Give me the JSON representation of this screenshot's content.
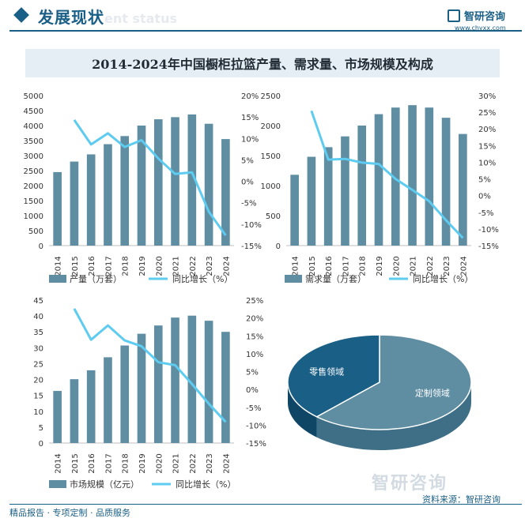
{
  "header": {
    "title": "发展现状",
    "subtitle": "ent status",
    "brand_name": "智研咨询",
    "brand_url": "www.chyxx.com"
  },
  "figure_title": "2014-2024年中国橱柜拉篮产量、需求量、市场规模及构成",
  "footer": {
    "tagline": "精品报告 · 专项定制 · 品质服务",
    "source": "资料来源：智研咨询",
    "watermark": "智研咨询"
  },
  "colors": {
    "bar": "#5f8ea3",
    "line": "#5ecbf0",
    "pie_dark": "#1a5f86",
    "pie_light": "#5f8ea3"
  },
  "chart_data": [
    {
      "type": "bar",
      "categories": [
        "2014",
        "2015",
        "2016",
        "2017",
        "2018",
        "2019",
        "2020",
        "2021",
        "2022",
        "2023",
        "2024"
      ],
      "series": [
        {
          "name": "产量（万套）",
          "values": [
            2450,
            2800,
            3040,
            3380,
            3650,
            4000,
            4210,
            4280,
            4370,
            4060,
            3550
          ]
        },
        {
          "name": "同比增长（%）",
          "type": "line",
          "values": [
            null,
            14.3,
            8.6,
            11.2,
            8.0,
            9.6,
            5.3,
            1.7,
            2.1,
            -7.1,
            -12.6
          ]
        }
      ],
      "ylim_left": [
        0,
        5000
      ],
      "ylim_right": [
        -15,
        20
      ],
      "yticks_left": [
        "0",
        "500",
        "1000",
        "1500",
        "2000",
        "2500",
        "3000",
        "3500",
        "4000",
        "4500",
        "5000"
      ],
      "yticks_right": [
        "-15%",
        "-10%",
        "-5%",
        "0%",
        "5%",
        "10%",
        "15%",
        "20%"
      ]
    },
    {
      "type": "bar",
      "categories": [
        "2014",
        "2015",
        "2016",
        "2017",
        "2018",
        "2019",
        "2020",
        "2021",
        "2022",
        "2023",
        "2024"
      ],
      "series": [
        {
          "name": "需求量（万套）",
          "values": [
            1180,
            1480,
            1640,
            1820,
            2000,
            2190,
            2300,
            2340,
            2300,
            2130,
            1860
          ]
        },
        {
          "name": "同比增长（%）",
          "type": "line",
          "values": [
            null,
            25.4,
            10.8,
            11.0,
            9.9,
            9.5,
            5.0,
            1.7,
            -1.7,
            -7.4,
            -12.7
          ]
        }
      ],
      "ylim_left": [
        0,
        2500
      ],
      "ylim_right": [
        -15,
        30
      ],
      "yticks_left": [
        "0",
        "500",
        "1000",
        "1500",
        "2000",
        "2500"
      ],
      "yticks_right": [
        "-15%",
        "-10%",
        "-5%",
        "0%",
        "5%",
        "10%",
        "15%",
        "20%",
        "25%",
        "30%"
      ]
    },
    {
      "type": "bar",
      "categories": [
        "2014",
        "2015",
        "2016",
        "2017",
        "2018",
        "2019",
        "2020",
        "2021",
        "2022",
        "2023",
        "2024"
      ],
      "series": [
        {
          "name": "市场规模（亿元）",
          "values": [
            16.4,
            20.1,
            22.9,
            27.0,
            30.7,
            34.4,
            37.0,
            39.5,
            40.1,
            38.5,
            35.0
          ]
        },
        {
          "name": "同比增长（%）",
          "type": "line",
          "values": [
            null,
            22.6,
            13.9,
            17.9,
            13.7,
            12.1,
            7.6,
            6.8,
            1.5,
            -4.0,
            -9.1
          ]
        }
      ],
      "ylim_left": [
        0,
        45
      ],
      "ylim_right": [
        -15,
        25
      ],
      "yticks_left": [
        "0",
        "5",
        "10",
        "15",
        "20",
        "25",
        "30",
        "35",
        "40",
        "45"
      ],
      "yticks_right": [
        "-15%",
        "-10%",
        "-5%",
        "0%",
        "5%",
        "10%",
        "15%",
        "20%",
        "25%"
      ]
    },
    {
      "type": "pie",
      "labels": [
        "定制领域",
        "零售领域"
      ],
      "values": [
        62,
        38
      ]
    }
  ]
}
